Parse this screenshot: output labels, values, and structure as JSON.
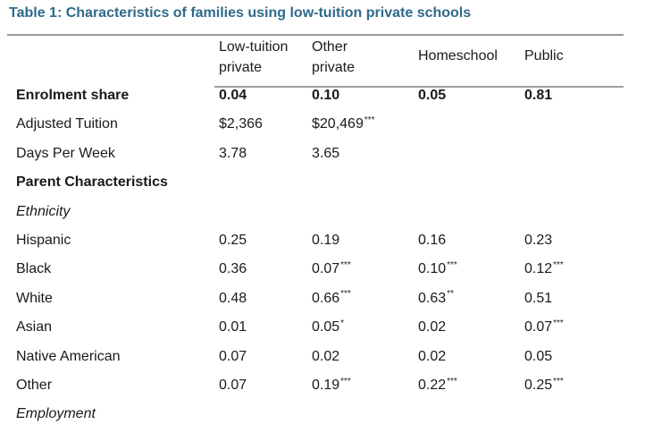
{
  "title": "Table 1: Characteristics of families using low-tuition private schools",
  "colors": {
    "title": "#2f6a8a",
    "rule": "#9a9a9a"
  },
  "columns": [
    {
      "line1": "Low-tuition",
      "line2": "private"
    },
    {
      "line1": "Other",
      "line2": "private"
    },
    {
      "line1": "Homeschool",
      "line2": ""
    },
    {
      "line1": "Public",
      "line2": ""
    }
  ],
  "rows": [
    {
      "label": "Enrolment share",
      "style": "bold",
      "cells": [
        {
          "v": "0.04",
          "sig": ""
        },
        {
          "v": "0.10",
          "sig": ""
        },
        {
          "v": "0.05",
          "sig": ""
        },
        {
          "v": "0.81",
          "sig": ""
        }
      ]
    },
    {
      "label": "Adjusted Tuition",
      "style": "normal",
      "cells": [
        {
          "v": "$2,366",
          "sig": ""
        },
        {
          "v": "$20,469",
          "sig": "***"
        },
        {
          "v": "",
          "sig": ""
        },
        {
          "v": "",
          "sig": ""
        }
      ]
    },
    {
      "label": "Days Per Week",
      "style": "normal",
      "cells": [
        {
          "v": "3.78",
          "sig": ""
        },
        {
          "v": "3.65",
          "sig": ""
        },
        {
          "v": "",
          "sig": ""
        },
        {
          "v": "",
          "sig": ""
        }
      ]
    },
    {
      "label": "Parent Characteristics",
      "style": "bold",
      "cells": []
    },
    {
      "label": "Ethnicity",
      "style": "italic",
      "cells": []
    },
    {
      "label": "Hispanic",
      "style": "normal",
      "cells": [
        {
          "v": "0.25",
          "sig": ""
        },
        {
          "v": "0.19",
          "sig": ""
        },
        {
          "v": "0.16",
          "sig": ""
        },
        {
          "v": "0.23",
          "sig": ""
        }
      ]
    },
    {
      "label": "Black",
      "style": "normal",
      "cells": [
        {
          "v": "0.36",
          "sig": ""
        },
        {
          "v": "0.07",
          "sig": "***"
        },
        {
          "v": "0.10",
          "sig": "***"
        },
        {
          "v": "0.12",
          "sig": "***"
        }
      ]
    },
    {
      "label": "White",
      "style": "normal",
      "cells": [
        {
          "v": "0.48",
          "sig": ""
        },
        {
          "v": "0.66",
          "sig": "***"
        },
        {
          "v": "0.63",
          "sig": "**"
        },
        {
          "v": "0.51",
          "sig": ""
        }
      ]
    },
    {
      "label": "Asian",
      "style": "normal",
      "cells": [
        {
          "v": "0.01",
          "sig": ""
        },
        {
          "v": "0.05",
          "sig": "*"
        },
        {
          "v": "0.02",
          "sig": ""
        },
        {
          "v": "0.07",
          "sig": "***"
        }
      ]
    },
    {
      "label": "Native American",
      "style": "normal",
      "cells": [
        {
          "v": "0.07",
          "sig": ""
        },
        {
          "v": "0.02",
          "sig": ""
        },
        {
          "v": "0.02",
          "sig": ""
        },
        {
          "v": "0.05",
          "sig": ""
        }
      ]
    },
    {
      "label": "Other",
      "style": "normal",
      "cells": [
        {
          "v": "0.07",
          "sig": ""
        },
        {
          "v": "0.19",
          "sig": "***"
        },
        {
          "v": "0.22",
          "sig": "***"
        },
        {
          "v": "0.25",
          "sig": "***"
        }
      ]
    },
    {
      "label": "Employment",
      "style": "italic",
      "cells": []
    }
  ]
}
